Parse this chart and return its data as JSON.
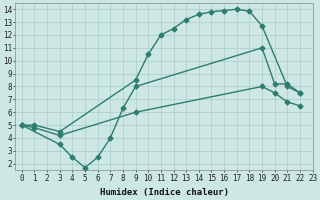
{
  "line1_x": [
    0,
    1,
    3,
    9,
    10,
    11,
    12,
    13,
    14,
    15,
    16,
    17,
    18,
    19,
    21,
    22
  ],
  "line1_y": [
    5.0,
    5.0,
    4.5,
    8.5,
    10.5,
    12.0,
    12.5,
    13.2,
    13.6,
    13.8,
    13.9,
    14.0,
    13.85,
    12.7,
    8.0,
    7.5
  ],
  "line2_x": [
    0,
    3,
    4,
    5,
    6,
    7,
    8,
    9,
    19,
    20,
    21,
    22
  ],
  "line2_y": [
    5.0,
    3.5,
    2.5,
    1.7,
    2.5,
    4.0,
    6.3,
    8.0,
    11.0,
    8.2,
    8.2,
    7.5
  ],
  "line3_x": [
    0,
    1,
    3,
    9,
    19,
    20,
    21,
    22
  ],
  "line3_y": [
    5.0,
    4.8,
    4.2,
    6.0,
    8.0,
    7.5,
    6.8,
    6.5
  ],
  "line_color": "#2e7d6e",
  "bg_color": "#cde8e4",
  "grid_color": "#a8cccc",
  "xlabel": "Humidex (Indice chaleur)",
  "xlim": [
    -0.5,
    23
  ],
  "ylim": [
    1.5,
    14.5
  ],
  "xticks": [
    0,
    1,
    2,
    3,
    4,
    5,
    6,
    7,
    8,
    9,
    10,
    11,
    12,
    13,
    14,
    15,
    16,
    17,
    18,
    19,
    20,
    21,
    22,
    23
  ],
  "yticks": [
    2,
    3,
    4,
    5,
    6,
    7,
    8,
    9,
    10,
    11,
    12,
    13,
    14
  ],
  "tick_fontsize": 5.5,
  "xlabel_fontsize": 6.5,
  "marker": "D",
  "markersize": 2.5,
  "linewidth": 1.0
}
